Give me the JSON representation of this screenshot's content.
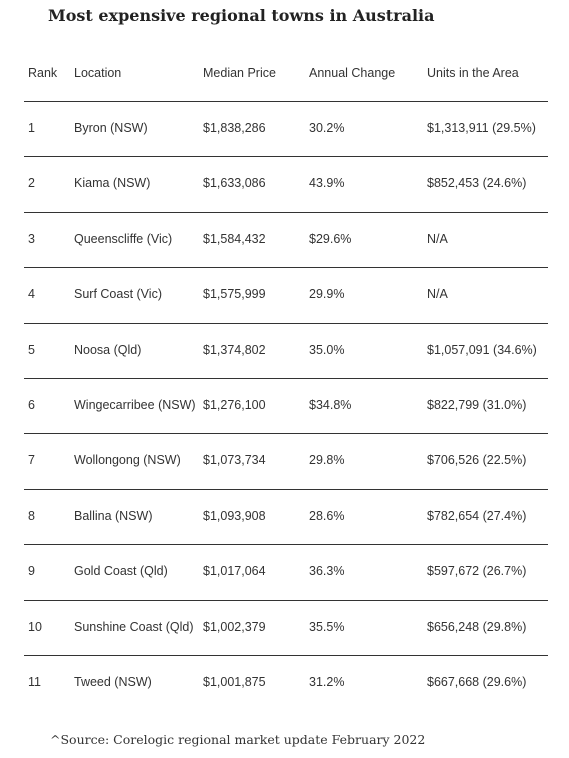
{
  "title": "Most expensive regional towns in Australia",
  "columns": [
    "Rank",
    "Location",
    "Median Price",
    "Annual Change",
    "Units in the Area"
  ],
  "rows": [
    {
      "rank": "1",
      "location": "Byron (NSW)",
      "median_price": "$1,838,286",
      "annual_change": "30.2%",
      "units": "$1,313,911 (29.5%)"
    },
    {
      "rank": "2",
      "location": "Kiama (NSW)",
      "median_price": "$1,633,086",
      "annual_change": "43.9%",
      "units": "$852,453 (24.6%)"
    },
    {
      "rank": "3",
      "location": "Queenscliffe (Vic)",
      "median_price": "$1,584,432",
      "annual_change": "$29.6%",
      "units": "N/A"
    },
    {
      "rank": "4",
      "location": "Surf Coast (Vic)",
      "median_price": "$1,575,999",
      "annual_change": "29.9%",
      "units": "N/A"
    },
    {
      "rank": "5",
      "location": "Noosa (Qld)",
      "median_price": "$1,374,802",
      "annual_change": "35.0%",
      "units": "$1,057,091 (34.6%)"
    },
    {
      "rank": "6",
      "location": "Wingecarribee (NSW)",
      "median_price": "$1,276,100",
      "annual_change": "$34.8%",
      "units": "$822,799 (31.0%)"
    },
    {
      "rank": "7",
      "location": "Wollongong (NSW)",
      "median_price": "$1,073,734",
      "annual_change": "29.8%",
      "units": "$706,526 (22.5%)"
    },
    {
      "rank": "8",
      "location": "Ballina (NSW)",
      "median_price": "$1,093,908",
      "annual_change": "28.6%",
      "units": "$782,654 (27.4%)"
    },
    {
      "rank": "9",
      "location": "Gold Coast (Qld)",
      "median_price": "$1,017,064",
      "annual_change": "36.3%",
      "units": "$597,672 (26.7%)"
    },
    {
      "rank": "10",
      "location": "Sunshine Coast (Qld)",
      "median_price": "$1,002,379",
      "annual_change": "35.5%",
      "units": "$656,248 (29.8%)"
    },
    {
      "rank": "11",
      "location": "Tweed (NSW)",
      "median_price": "$1,001,875",
      "annual_change": "31.2%",
      "units": "$667,668 (29.6%)"
    }
  ],
  "source": "^Source: Corelogic regional market update February 2022"
}
